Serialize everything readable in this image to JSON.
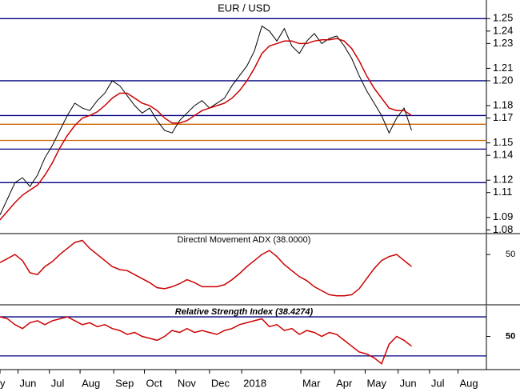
{
  "chart_data": [
    {
      "type": "line",
      "title": "EUR / USD",
      "x": [
        0,
        1,
        2,
        3,
        4,
        5,
        6,
        7,
        8,
        9,
        10,
        11,
        12,
        13,
        14,
        15,
        16,
        17,
        18,
        19,
        20,
        21,
        22,
        23,
        24,
        25,
        26,
        27,
        28,
        29,
        30,
        31,
        32,
        33,
        34,
        35,
        36,
        37,
        38,
        39,
        40,
        41,
        42,
        43,
        44,
        45,
        46,
        47,
        48,
        49,
        50,
        51,
        52,
        53,
        54,
        55
      ],
      "series": [
        {
          "color": "#000000",
          "values": [
            1.092,
            1.105,
            1.118,
            1.122,
            1.115,
            1.124,
            1.138,
            1.148,
            1.16,
            1.172,
            1.182,
            1.178,
            1.176,
            1.184,
            1.19,
            1.2,
            1.196,
            1.188,
            1.18,
            1.174,
            1.178,
            1.168,
            1.16,
            1.158,
            1.168,
            1.174,
            1.18,
            1.184,
            1.178,
            1.182,
            1.186,
            1.196,
            1.204,
            1.212,
            1.224,
            1.244,
            1.24,
            1.232,
            1.242,
            1.228,
            1.222,
            1.232,
            1.238,
            1.23,
            1.234,
            1.236,
            1.228,
            1.218,
            1.204,
            1.192,
            1.182,
            1.172,
            1.158,
            1.17,
            1.178,
            1.16
          ]
        },
        {
          "color": "#cc0000",
          "values": [
            1.088,
            1.095,
            1.102,
            1.108,
            1.112,
            1.116,
            1.124,
            1.134,
            1.146,
            1.156,
            1.164,
            1.17,
            1.172,
            1.175,
            1.18,
            1.186,
            1.19,
            1.19,
            1.186,
            1.182,
            1.18,
            1.176,
            1.17,
            1.166,
            1.166,
            1.168,
            1.172,
            1.176,
            1.178,
            1.18,
            1.182,
            1.186,
            1.192,
            1.2,
            1.21,
            1.222,
            1.228,
            1.23,
            1.232,
            1.232,
            1.23,
            1.23,
            1.232,
            1.233,
            1.233,
            1.234,
            1.232,
            1.226,
            1.216,
            1.204,
            1.194,
            1.186,
            1.178,
            1.176,
            1.176,
            1.172
          ]
        }
      ],
      "hlines": [
        {
          "value": 1.25,
          "color": "#000080"
        },
        {
          "value": 1.2,
          "color": "#000080"
        },
        {
          "value": 1.172,
          "color": "#000080"
        },
        {
          "value": 1.165,
          "color": "#cc6600"
        },
        {
          "value": 1.152,
          "color": "#cc6600"
        },
        {
          "value": 1.145,
          "color": "#000080"
        },
        {
          "value": 1.118,
          "color": "#000080"
        }
      ],
      "xlim": [
        0,
        65
      ],
      "ylim": [
        1.077,
        1.265
      ],
      "yticks": [
        1.08,
        1.09,
        1.11,
        1.12,
        1.14,
        1.15,
        1.17,
        1.18,
        {
          "value": 1.2,
          "label": "1.20"
        },
        1.21,
        1.23,
        1.24,
        1.25
      ]
    },
    {
      "type": "line",
      "title": "Directnl Movement ADX (38.0000)",
      "x": [
        0,
        1,
        2,
        3,
        4,
        5,
        6,
        7,
        8,
        9,
        10,
        11,
        12,
        13,
        14,
        15,
        16,
        17,
        18,
        19,
        20,
        21,
        22,
        23,
        24,
        25,
        26,
        27,
        28,
        29,
        30,
        31,
        32,
        33,
        34,
        35,
        36,
        37,
        38,
        39,
        40,
        41,
        42,
        43,
        44,
        45,
        46,
        47,
        48,
        49,
        50,
        51,
        52,
        53,
        54,
        55
      ],
      "series": [
        {
          "color": "#cc0000",
          "values": [
            42,
            46,
            50,
            44,
            32,
            30,
            38,
            43,
            50,
            56,
            62,
            64,
            56,
            50,
            44,
            38,
            35,
            34,
            30,
            26,
            22,
            17,
            16,
            18,
            21,
            25,
            22,
            18,
            18,
            18,
            20,
            25,
            31,
            38,
            44,
            50,
            54,
            48,
            40,
            34,
            28,
            24,
            18,
            14,
            10,
            9,
            9,
            10,
            16,
            26,
            36,
            44,
            48,
            50,
            44,
            38
          ]
        }
      ],
      "hlines": [],
      "xlim": [
        0,
        65
      ],
      "ylim": [
        0,
        70
      ],
      "yticks": [
        50
      ]
    },
    {
      "type": "line",
      "title": "Relative Strength Index (38.4274)",
      "x": [
        0,
        1,
        2,
        3,
        4,
        5,
        6,
        7,
        8,
        9,
        10,
        11,
        12,
        13,
        14,
        15,
        16,
        17,
        18,
        19,
        20,
        21,
        22,
        23,
        24,
        25,
        26,
        27,
        28,
        29,
        30,
        31,
        32,
        33,
        34,
        35,
        36,
        37,
        38,
        39,
        40,
        41,
        42,
        43,
        44,
        45,
        46,
        47,
        48,
        49,
        50,
        51,
        52,
        53,
        54,
        55
      ],
      "series": [
        {
          "color": "#cc0000",
          "values": [
            70,
            68,
            62,
            58,
            64,
            66,
            62,
            66,
            68,
            70,
            66,
            62,
            64,
            60,
            62,
            58,
            56,
            52,
            54,
            50,
            48,
            46,
            50,
            56,
            54,
            58,
            54,
            56,
            54,
            52,
            56,
            58,
            62,
            64,
            66,
            68,
            60,
            62,
            56,
            58,
            52,
            56,
            54,
            50,
            54,
            52,
            46,
            40,
            34,
            32,
            28,
            22,
            42,
            50,
            46,
            40
          ]
        }
      ],
      "hlines": [
        {
          "value": 70,
          "color": "#000080"
        },
        {
          "value": 30,
          "color": "#000080"
        }
      ],
      "xlim": [
        0,
        65
      ],
      "ylim": [
        16,
        81.5
      ],
      "yticks": [
        50
      ],
      "xticks": [
        {
          "value": 0,
          "label": "y"
        },
        {
          "value": 2.4,
          "label": "Jun"
        },
        {
          "value": 6.6,
          "label": "Jul"
        },
        {
          "value": 10.7,
          "label": "Aug"
        },
        {
          "value": 15.2,
          "label": "Sep"
        },
        {
          "value": 19.3,
          "label": "Oct"
        },
        {
          "value": 23.5,
          "label": "Nov"
        },
        {
          "value": 28,
          "label": "Dec"
        },
        {
          "value": 32.3,
          "label": "2018"
        },
        {
          "value": 40.2,
          "label": "Mar"
        },
        {
          "value": 44.7,
          "label": "Apr"
        },
        {
          "value": 48.8,
          "label": "May"
        },
        {
          "value": 53.2,
          "label": "Jun"
        },
        {
          "value": 57.4,
          "label": "Jul"
        },
        {
          "value": 61.2,
          "label": "Aug"
        }
      ]
    }
  ]
}
